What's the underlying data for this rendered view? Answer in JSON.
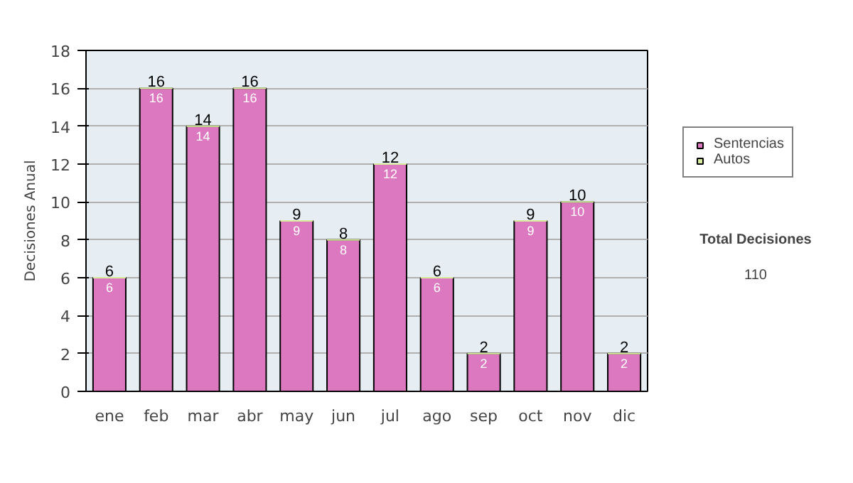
{
  "chart_data": {
    "type": "bar",
    "ylabel": "Decisiones Anual",
    "stacked": true,
    "categories": [
      "ene",
      "feb",
      "mar",
      "abr",
      "may",
      "jun",
      "jul",
      "ago",
      "sep",
      "oct",
      "nov",
      "dic"
    ],
    "series": [
      {
        "name": "Sentencias",
        "color": "#dc78c0",
        "values": [
          6,
          16,
          14,
          16,
          9,
          8,
          12,
          6,
          2,
          9,
          10,
          2
        ],
        "value_labels": [
          "6",
          "16",
          "14",
          "16",
          "9",
          "8",
          "12",
          "6",
          "2",
          "9",
          "10",
          "2"
        ]
      },
      {
        "name": "Autos",
        "color": "#d8eca0",
        "values": [
          0,
          0,
          0,
          0,
          0,
          0,
          0,
          0,
          0,
          0,
          0,
          0
        ]
      }
    ],
    "totals": [
      "6",
      "16",
      "14",
      "16",
      "9",
      "8",
      "12",
      "6",
      "2",
      "9",
      "10",
      "2"
    ],
    "ylim": [
      0,
      18
    ],
    "yticks": [
      0,
      2,
      4,
      6,
      8,
      10,
      12,
      14,
      16,
      18
    ],
    "grid": "y",
    "legend": "right",
    "annotations": [
      "Total Decisiones",
      "110"
    ]
  }
}
